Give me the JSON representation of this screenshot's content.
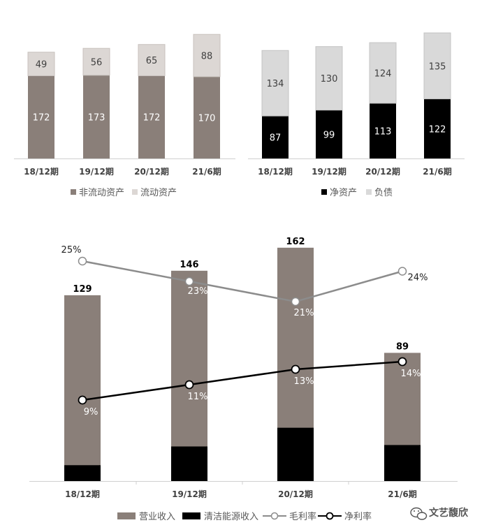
{
  "colors": {
    "taupe": "#8a7f79",
    "light_gray": "#d9d9d9",
    "light_gray2": "#dcdcdc",
    "black": "#000000",
    "line_gray": "#8c8c8c"
  },
  "chart_data": [
    {
      "type": "bar",
      "stacked": true,
      "categories": [
        "18/12期",
        "19/12期",
        "20/12期",
        "21/6期"
      ],
      "series": [
        {
          "name": "非流动资产",
          "values": [
            172,
            173,
            172,
            170
          ],
          "color": "#8a7f79"
        },
        {
          "name": "流动资产",
          "values": [
            49,
            56,
            65,
            88
          ],
          "color": "#dcd7d4"
        }
      ],
      "legend_position": "bottom",
      "grid": false
    },
    {
      "type": "bar",
      "stacked": true,
      "categories": [
        "18/12期",
        "19/12期",
        "20/12期",
        "21/6期"
      ],
      "series": [
        {
          "name": "净资产",
          "values": [
            87,
            99,
            113,
            122
          ],
          "color": "#000000"
        },
        {
          "name": "负债",
          "values": [
            134,
            130,
            124,
            135
          ],
          "color": "#d9d9d9"
        }
      ],
      "legend_position": "bottom",
      "grid": false
    },
    {
      "type": "bar",
      "stacked": false,
      "categories": [
        "18/12期",
        "19/12期",
        "20/12期",
        "21/6期"
      ],
      "totals": [
        129,
        146,
        162,
        89
      ],
      "series": [
        {
          "name": "营业收入",
          "values": [
            129,
            146,
            162,
            89
          ],
          "color": "#8a7f79",
          "kind": "bar"
        },
        {
          "name": "清洁能源收入",
          "values": [
            11,
            24,
            37,
            25
          ],
          "color": "#000000",
          "kind": "bar"
        },
        {
          "name": "毛利率",
          "values": [
            25,
            23,
            21,
            24
          ],
          "labels": [
            "25%",
            "23%",
            "21%",
            "24%"
          ],
          "color": "#8c8c8c",
          "kind": "line"
        },
        {
          "name": "净利率",
          "values": [
            9,
            11,
            13,
            14
          ],
          "labels": [
            "9%",
            "11%",
            "13%",
            "14%"
          ],
          "color": "#000000",
          "kind": "line"
        }
      ],
      "legend_position": "bottom",
      "grid": false
    }
  ],
  "watermark": {
    "text": "文艺馥欣",
    "icon": "wechat-icon"
  }
}
